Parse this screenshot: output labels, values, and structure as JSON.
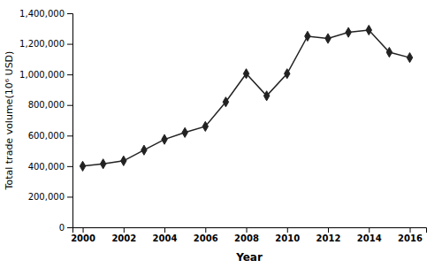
{
  "chart_data": {
    "type": "line",
    "x": [
      2000,
      2001,
      2002,
      2003,
      2004,
      2005,
      2006,
      2007,
      2008,
      2009,
      2010,
      2011,
      2012,
      2013,
      2014,
      2015,
      2016
    ],
    "values": [
      400000,
      415000,
      435000,
      505000,
      575000,
      620000,
      660000,
      820000,
      1005000,
      860000,
      1005000,
      1250000,
      1235000,
      1275000,
      1290000,
      1145000,
      1110000
    ],
    "xlabel": "Year",
    "ylabel": "Total trade volume(10⁶ USD)",
    "xlim": [
      1999.5,
      2016.8
    ],
    "xticks": [
      2000,
      2002,
      2004,
      2006,
      2008,
      2010,
      2012,
      2014,
      2016
    ],
    "ylim": [
      0,
      1400000
    ],
    "yticks": [
      0,
      {
        "value": 200000,
        "label": "200,000"
      },
      {
        "value": 400000,
        "label": "400,000"
      },
      {
        "value": 600000,
        "label": "600,000"
      },
      {
        "value": 800000,
        "label": "800,000"
      },
      {
        "value": 1000000,
        "label": "1,000,000"
      },
      {
        "value": 1200000,
        "label": "1,200,000"
      },
      {
        "value": 1400000,
        "label": "1,400,000"
      }
    ],
    "color": "#222222",
    "marker": "diamond",
    "grid": false
  }
}
